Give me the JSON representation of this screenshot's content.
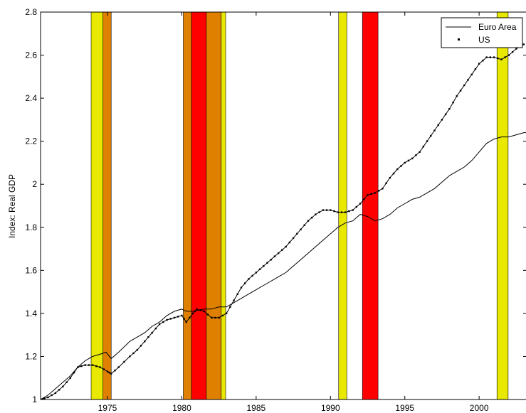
{
  "chart_data": {
    "type": "line",
    "title": "",
    "xlabel": "",
    "ylabel": "Index: Real GDP",
    "xlim": [
      1970.5,
      2003.2
    ],
    "ylim": [
      1,
      2.8
    ],
    "xticks": [
      1975,
      1980,
      1985,
      1990,
      1995,
      2000
    ],
    "yticks": [
      1,
      1.2,
      1.4,
      1.6,
      1.8,
      2,
      2.2,
      2.4,
      2.6,
      2.8
    ],
    "ytick_labels": [
      "1",
      "1.2",
      "1.4",
      "1.6",
      "1.8",
      "2",
      "2.2",
      "2.4",
      "2.6",
      "2.8"
    ],
    "grid": false,
    "legend_position": "top-right",
    "shaded_periods": [
      {
        "start": 1973.9,
        "end": 1974.7,
        "color": "#e8e800"
      },
      {
        "start": 1974.7,
        "end": 1975.25,
        "color": "#e08000"
      },
      {
        "start": 1980.1,
        "end": 1980.65,
        "color": "#e08000"
      },
      {
        "start": 1980.65,
        "end": 1981.65,
        "color": "#ff0000"
      },
      {
        "start": 1981.65,
        "end": 1982.65,
        "color": "#e08000"
      },
      {
        "start": 1982.65,
        "end": 1982.95,
        "color": "#e8e800"
      },
      {
        "start": 1990.55,
        "end": 1991.1,
        "color": "#e8e800"
      },
      {
        "start": 1992.15,
        "end": 1993.2,
        "color": "#ff0000"
      },
      {
        "start": 2001.2,
        "end": 2001.95,
        "color": "#e8e800"
      }
    ],
    "series": [
      {
        "name": "Euro Area",
        "style": "line",
        "x": [
          1970.5,
          1971,
          1971.5,
          1972,
          1972.5,
          1973,
          1973.5,
          1974,
          1974.5,
          1974.9,
          1975.25,
          1975.75,
          1976.5,
          1977,
          1977.5,
          1978,
          1978.5,
          1979,
          1979.5,
          1980,
          1980.3,
          1980.75,
          1981.5,
          1982,
          1982.5,
          1983,
          1983.5,
          1984,
          1984.5,
          1985,
          1985.5,
          1986,
          1986.5,
          1987,
          1987.5,
          1988,
          1988.5,
          1989,
          1989.5,
          1990,
          1990.5,
          1991,
          1991.5,
          1992,
          1992.5,
          1993,
          1993.5,
          1994,
          1994.5,
          1995,
          1995.5,
          1996,
          1996.5,
          1997,
          1997.5,
          1998,
          1998.5,
          1999,
          1999.5,
          2000,
          2000.5,
          2001,
          2001.5,
          2002,
          2002.5,
          2003,
          2003.2
        ],
        "y": [
          1.0,
          1.02,
          1.05,
          1.08,
          1.11,
          1.15,
          1.18,
          1.2,
          1.21,
          1.22,
          1.19,
          1.22,
          1.27,
          1.29,
          1.31,
          1.34,
          1.36,
          1.39,
          1.41,
          1.42,
          1.41,
          1.41,
          1.42,
          1.42,
          1.43,
          1.43,
          1.45,
          1.47,
          1.49,
          1.51,
          1.53,
          1.55,
          1.57,
          1.59,
          1.62,
          1.65,
          1.68,
          1.71,
          1.74,
          1.77,
          1.8,
          1.82,
          1.83,
          1.86,
          1.85,
          1.83,
          1.84,
          1.86,
          1.89,
          1.91,
          1.93,
          1.94,
          1.96,
          1.98,
          2.01,
          2.04,
          2.06,
          2.08,
          2.11,
          2.15,
          2.19,
          2.21,
          2.22,
          2.22,
          2.23,
          2.24,
          2.24
        ]
      },
      {
        "name": "US",
        "style": "line-dots",
        "x": [
          1970.5,
          1971,
          1971.5,
          1972,
          1972.5,
          1973,
          1973.5,
          1974,
          1974.5,
          1975,
          1975.25,
          1975.75,
          1976.5,
          1977,
          1977.5,
          1978,
          1978.5,
          1979,
          1979.5,
          1980,
          1980.3,
          1980.75,
          1981,
          1981.5,
          1982,
          1982.5,
          1983,
          1983.5,
          1984,
          1984.5,
          1985,
          1985.5,
          1986,
          1986.5,
          1987,
          1987.5,
          1988,
          1988.5,
          1989,
          1989.5,
          1990,
          1990.5,
          1991,
          1991.5,
          1992,
          1992.5,
          1993,
          1993.5,
          1994,
          1994.5,
          1995,
          1995.5,
          1996,
          1996.5,
          1997,
          1997.5,
          1998,
          1998.5,
          1999,
          1999.5,
          2000,
          2000.5,
          2001,
          2001.5,
          2002,
          2002.5,
          2003
        ],
        "y": [
          1.0,
          1.01,
          1.03,
          1.06,
          1.1,
          1.15,
          1.16,
          1.16,
          1.15,
          1.13,
          1.12,
          1.15,
          1.2,
          1.23,
          1.27,
          1.31,
          1.35,
          1.37,
          1.38,
          1.39,
          1.36,
          1.4,
          1.42,
          1.41,
          1.38,
          1.38,
          1.4,
          1.46,
          1.52,
          1.56,
          1.59,
          1.62,
          1.65,
          1.68,
          1.71,
          1.75,
          1.79,
          1.83,
          1.86,
          1.88,
          1.88,
          1.87,
          1.87,
          1.88,
          1.91,
          1.95,
          1.96,
          1.98,
          2.03,
          2.07,
          2.1,
          2.12,
          2.15,
          2.2,
          2.25,
          2.3,
          2.35,
          2.41,
          2.46,
          2.51,
          2.56,
          2.59,
          2.59,
          2.58,
          2.6,
          2.63,
          2.65
        ]
      }
    ]
  }
}
